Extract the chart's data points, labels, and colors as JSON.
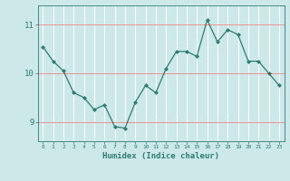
{
  "x": [
    0,
    1,
    2,
    3,
    4,
    5,
    6,
    7,
    8,
    9,
    10,
    11,
    12,
    13,
    14,
    15,
    16,
    17,
    18,
    19,
    20,
    21,
    22,
    23
  ],
  "y": [
    10.55,
    10.25,
    10.05,
    9.6,
    9.5,
    9.25,
    9.35,
    8.9,
    8.87,
    9.4,
    9.75,
    9.6,
    10.1,
    10.45,
    10.45,
    10.35,
    11.1,
    10.65,
    10.9,
    10.8,
    10.25,
    10.25,
    10.0,
    9.75
  ],
  "xlabel": "Humidex (Indice chaleur)",
  "line_color": "#2e7d72",
  "marker_color": "#2e7d72",
  "bg_color": "#cce8e8",
  "grid_color": "#ffffff",
  "tick_color": "#2e7d72",
  "label_color": "#2e7d72",
  "ylim": [
    8.6,
    11.4
  ],
  "xlim": [
    -0.5,
    23.5
  ],
  "yticks": [
    9,
    10,
    11
  ],
  "xticks": [
    0,
    1,
    2,
    3,
    4,
    5,
    6,
    7,
    8,
    9,
    10,
    11,
    12,
    13,
    14,
    15,
    16,
    17,
    18,
    19,
    20,
    21,
    22,
    23
  ]
}
